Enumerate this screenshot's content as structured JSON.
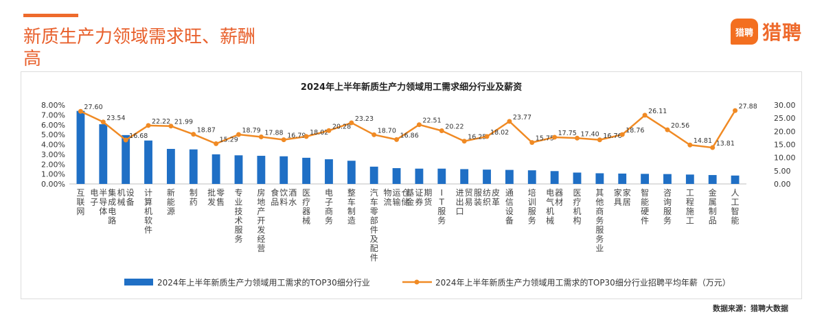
{
  "page": {
    "title": "新质生产力领域需求旺、薪酬高",
    "logo_text": "猎聘",
    "source": "数据来源：猎聘大数据"
  },
  "chart_data": {
    "type": "bar+line",
    "title": "2024年上半年新质生产力领域用工需求细分行业及薪资",
    "categories": [
      "互联网",
      "电子/半导体/集成电路",
      "机械/设备",
      "计算机软件",
      "新能源",
      "制药",
      "批发/零售",
      "专业技术服务",
      "房地产开发经营",
      "食品/饮料/酒水",
      "医疗器械",
      "电子商务",
      "整车制造",
      "汽车零部件及配件",
      "物流/运输/仓储",
      "基金/证券/期货",
      "IT服务",
      "进出口贸易",
      "服装/纺织/皮革",
      "通信设备",
      "培训服务",
      "电气机械/器材",
      "医疗机构",
      "其他商务服务业",
      "家具/家居",
      "智能硬件",
      "咨询服务",
      "工程施工",
      "金属制品",
      "人工智能"
    ],
    "category_labels": [
      "互联网",
      "电子\n半导体\n集成电路",
      "机械\n设备",
      "计算机软件",
      "新能源",
      "制药",
      "批发\n零售",
      "专业技术服务",
      "房地产开发经营",
      "食品\n饮料\n酒水",
      "医疗器械",
      "电子商务",
      "整车制造",
      "汽车零部件及配件",
      "物流\n运输\n仓储",
      "基金\n证券\n期货",
      "IT服务",
      "进出口\n贸易",
      "服装\n纺织\n皮革",
      "通信设备",
      "培训服务",
      "电气机械\n器材",
      "医疗机构",
      "其他商务服务业",
      "家具\n家居",
      "智能硬件",
      "咨询服务",
      "工程施工",
      "金属制品",
      "人工智能"
    ],
    "series": [
      {
        "name": "2024年上半年新质生产力领域用工需求的TOP30细分行业",
        "kind": "bar",
        "axis": "left",
        "values": [
          7.4,
          6.05,
          4.95,
          4.4,
          3.55,
          3.5,
          3.0,
          2.9,
          2.85,
          2.8,
          2.65,
          2.5,
          2.35,
          1.75,
          1.6,
          1.55,
          1.55,
          1.5,
          1.45,
          1.42,
          1.38,
          1.3,
          1.15,
          1.08,
          1.05,
          1.02,
          1.0,
          0.95,
          0.9,
          0.85
        ],
        "color": "#1F6FC5"
      },
      {
        "name": "2024年上半年新质生产力领域用工需求的TOP30细分行业招聘平均年薪（万元）",
        "kind": "line",
        "axis": "right",
        "values": [
          27.6,
          23.54,
          16.68,
          22.22,
          21.99,
          18.87,
          15.29,
          18.79,
          17.88,
          16.79,
          18.02,
          20.28,
          23.23,
          18.7,
          16.86,
          22.51,
          20.22,
          16.25,
          18.02,
          23.77,
          15.75,
          17.75,
          17.4,
          16.76,
          18.76,
          26.11,
          20.56,
          14.81,
          13.81,
          27.88
        ],
        "color": "#F08A24"
      }
    ],
    "y_left": {
      "min": 0,
      "max": 8,
      "step": 1,
      "ticks": [
        "0.00%",
        "1.00%",
        "2.00%",
        "3.00%",
        "4.00%",
        "5.00%",
        "6.00%",
        "7.00%",
        "8.00%"
      ]
    },
    "y_right": {
      "min": 0,
      "max": 30,
      "step": 5,
      "ticks": [
        "0.00",
        "5.00",
        "10.00",
        "15.00",
        "20.00",
        "25.00",
        "30.00"
      ]
    },
    "legend_position": "bottom",
    "grid": false
  }
}
